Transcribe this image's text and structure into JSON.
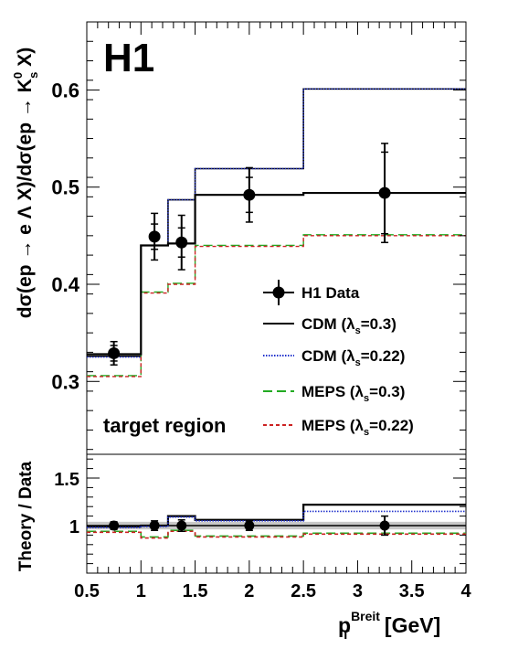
{
  "chart_data": [
    {
      "type": "line",
      "experiment_label": "H1",
      "annotation": "target region",
      "ylabel": {
        "prefix": "dσ(ep → e Λ X)/dσ(ep → K",
        "sup": "0",
        "sub": "s",
        "suffix": " X)"
      },
      "xlim": [
        0.5,
        4.0
      ],
      "ylim": [
        0.225,
        0.67
      ],
      "yticks": [
        "0.3",
        "0.4",
        "0.5",
        "0.6"
      ],
      "bin_edges": [
        0.5,
        1.0,
        1.25,
        1.5,
        2.5,
        4.0
      ],
      "legend": [
        {
          "key": "data",
          "text": "H1 Data",
          "sub": ""
        },
        {
          "key": "cdm03",
          "text_before": "CDM (λ",
          "sub": "s",
          "text_after": "=0.3)"
        },
        {
          "key": "cdm022",
          "text_before": "CDM (λ",
          "sub": "s",
          "text_after": "=0.22)"
        },
        {
          "key": "meps03",
          "text_before": "MEPS (λ",
          "sub": "s",
          "text_after": "=0.3)"
        },
        {
          "key": "meps022",
          "text_before": "MEPS (λ",
          "sub": "s",
          "text_after": "=0.22)"
        }
      ],
      "data_points": [
        {
          "x": 0.75,
          "y": 0.329,
          "stat_err": 0.008,
          "tot_err": 0.012
        },
        {
          "x": 1.125,
          "y": 0.449,
          "stat_err": 0.013,
          "tot_err": 0.024
        },
        {
          "x": 1.375,
          "y": 0.443,
          "stat_err": 0.015,
          "tot_err": 0.028
        },
        {
          "x": 2.0,
          "y": 0.492,
          "stat_err": 0.018,
          "tot_err": 0.028
        },
        {
          "x": 3.25,
          "y": 0.494,
          "stat_err": 0.042,
          "tot_err": 0.051
        }
      ],
      "series": [
        {
          "key": "cdm03",
          "color": "#000000",
          "dash": "",
          "values": [
            0.326,
            0.44,
            0.487,
            0.519,
            0.601
          ]
        },
        {
          "key": "cdm022",
          "color": "#2233cc",
          "dash": "1.5,1.5",
          "values": [
            0.325,
            0.44,
            0.487,
            0.519,
            0.601
          ]
        },
        {
          "key": "meps03",
          "color": "#22aa22",
          "dash": "10,5",
          "values": [
            0.306,
            0.392,
            0.401,
            0.44,
            0.451
          ]
        },
        {
          "key": "meps022",
          "color": "#cc2222",
          "dash": "4,3",
          "values": [
            0.305,
            0.391,
            0.4,
            0.439,
            0.45
          ]
        }
      ],
      "central_line": {
        "color": "#000000",
        "values": [
          0.328,
          0.44,
          0.442,
          0.492,
          0.494
        ]
      }
    },
    {
      "type": "line",
      "ylabel": "Theory / Data",
      "xlabel": {
        "main": "p",
        "sub": "T",
        "sup": "Breit",
        "unit": " [GeV]"
      },
      "xlim": [
        0.5,
        4.0
      ],
      "ylim": [
        0.5,
        1.75
      ],
      "yticks": [
        "1",
        "1.5"
      ],
      "xticks": [
        "0.5",
        "1",
        "1.5",
        "2",
        "2.5",
        "3",
        "3.5",
        "4"
      ],
      "bin_edges": [
        0.5,
        1.0,
        1.25,
        1.5,
        2.5,
        4.0
      ],
      "band": {
        "low": 0.96,
        "high": 1.04,
        "color": "#c8c8c8"
      },
      "data_points": [
        {
          "x": 0.75,
          "y": 1.0,
          "err": 0.04
        },
        {
          "x": 1.125,
          "y": 1.0,
          "err": 0.05
        },
        {
          "x": 1.375,
          "y": 1.0,
          "err": 0.06
        },
        {
          "x": 2.0,
          "y": 1.0,
          "err": 0.05
        },
        {
          "x": 3.25,
          "y": 1.0,
          "err": 0.1
        }
      ],
      "series": [
        {
          "key": "cdm03",
          "color": "#000000",
          "dash": "",
          "values": [
            0.99,
            1.0,
            1.1,
            1.06,
            1.22
          ]
        },
        {
          "key": "cdm022",
          "color": "#2233cc",
          "dash": "1.5,1.5",
          "values": [
            0.98,
            0.99,
            1.09,
            1.05,
            1.15
          ]
        },
        {
          "key": "meps03",
          "color": "#22aa22",
          "dash": "10,5",
          "values": [
            0.94,
            0.88,
            0.95,
            0.89,
            0.92
          ]
        },
        {
          "key": "meps022",
          "color": "#cc2222",
          "dash": "4,3",
          "values": [
            0.93,
            0.87,
            0.94,
            0.88,
            0.91
          ]
        }
      ]
    }
  ]
}
